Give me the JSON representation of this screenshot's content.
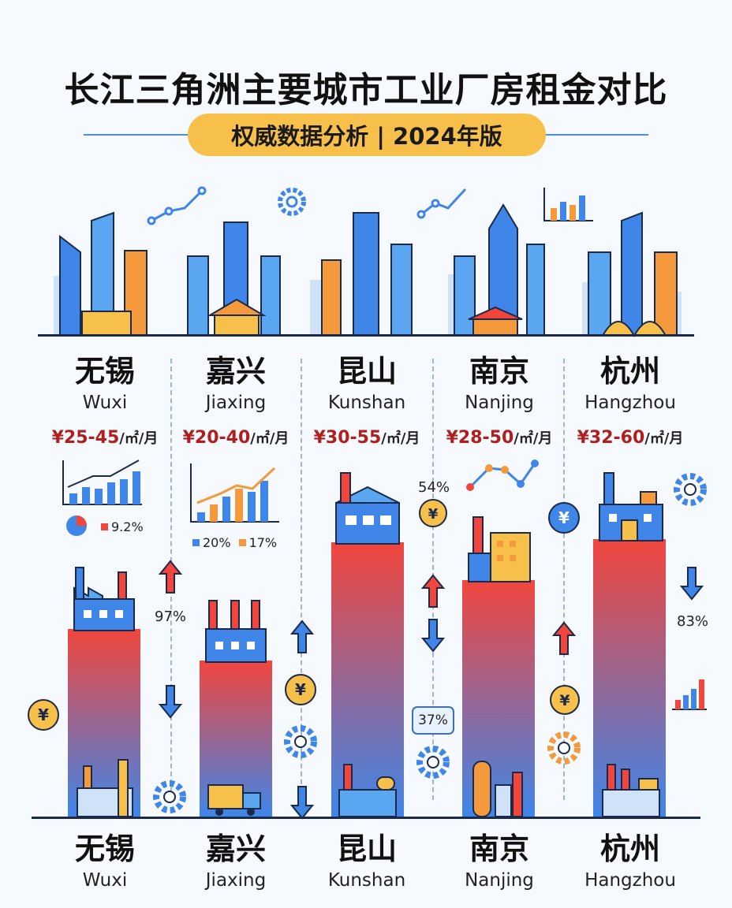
{
  "title": "长江三角洲主要城市工业厂房租金对比",
  "subtitle": "权威数据分析 | 2024年版",
  "unit": "/㎡/月",
  "cities": [
    {
      "cn": "无锡",
      "en": "Wuxi",
      "price": "¥25-45"
    },
    {
      "cn": "嘉兴",
      "en": "Jiaxing",
      "price": "¥20-40"
    },
    {
      "cn": "昆山",
      "en": "Kunshan",
      "price": "¥30-55"
    },
    {
      "cn": "南京",
      "en": "Nanjing",
      "price": "¥28-50"
    },
    {
      "cn": "杭州",
      "en": "Hangzhou",
      "price": "¥32-60"
    }
  ],
  "annotations": {
    "wuxi_pie": "9.2%",
    "wuxi_pct": "97%",
    "jiaxing_legend_a": "20%",
    "jiaxing_legend_b": "17%",
    "kunshan_pct": "54%",
    "kunshan_bubble": "37%",
    "hangzhou_pct": "83%",
    "currency_glyph": "¥"
  },
  "chart_data": {
    "type": "bar",
    "categories": [
      "无锡",
      "嘉兴",
      "昆山",
      "南京",
      "杭州"
    ],
    "series": [
      {
        "values": [
          [
            25,
            45
          ],
          [
            20,
            40
          ],
          [
            30,
            55
          ],
          [
            28,
            50
          ],
          [
            32,
            60
          ]
        ]
      }
    ]
  },
  "colors": {
    "accent": "#f7c04a",
    "bar_top": "#f2463d",
    "bar_bottom": "#3f86e8",
    "price": "#b01e1e"
  },
  "icons": [
    "line-chart-icon",
    "gear-icon",
    "bar-chart-icon",
    "factory-icon",
    "yuan-coin-icon",
    "arrow-up-icon",
    "arrow-down-icon",
    "truck-icon",
    "pie-chart-icon"
  ]
}
